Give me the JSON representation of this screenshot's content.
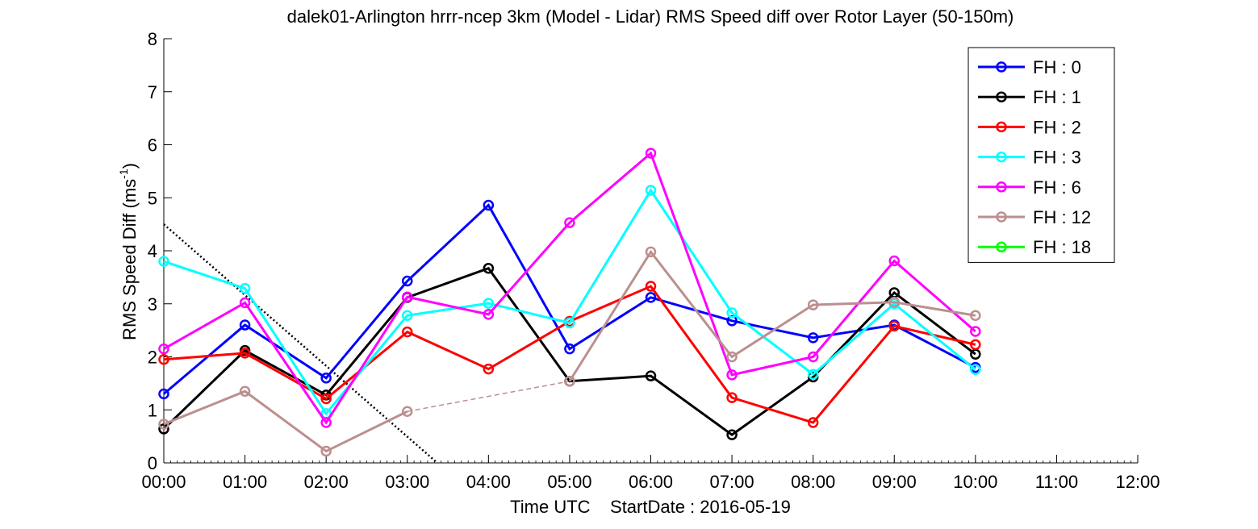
{
  "chart_data": {
    "type": "line",
    "title": "dalek01-Arlington hrrr-ncep 3km (Model - Lidar) RMS Speed diff over Rotor Layer (50-150m)",
    "xlabel": "Time UTC    StartDate : 2016-05-19",
    "ylabel": "RMS Speed Diff (ms",
    "ylabel_sup": "-1",
    "ylabel_close": ")",
    "ylim": [
      0,
      8
    ],
    "yticks": [
      "0",
      "1",
      "2",
      "3",
      "4",
      "5",
      "6",
      "7",
      "8"
    ],
    "xticks": [
      "00:00",
      "01:00",
      "02:00",
      "03:00",
      "04:00",
      "05:00",
      "06:00",
      "07:00",
      "08:00",
      "09:00",
      "10:00",
      "11:00",
      "12:00"
    ],
    "xlim": [
      0,
      12
    ],
    "grid": false,
    "legend_position": "top-right",
    "series": [
      {
        "name": "FH : 0",
        "color": "#0000ff",
        "x": [
          0,
          1,
          2,
          3,
          4,
          5,
          6,
          7,
          8,
          9,
          10
        ],
        "y": [
          1.3,
          2.6,
          1.6,
          3.43,
          4.86,
          2.15,
          3.12,
          2.68,
          2.36,
          2.6,
          1.8
        ]
      },
      {
        "name": "FH : 1",
        "color": "#000000",
        "x": [
          0,
          1,
          2,
          3,
          4,
          5,
          6,
          7,
          8,
          9,
          10
        ],
        "y": [
          0.64,
          2.12,
          1.28,
          3.12,
          3.67,
          1.54,
          1.64,
          0.53,
          1.62,
          3.21,
          2.05
        ]
      },
      {
        "name": "FH : 2",
        "color": "#ff0000",
        "x": [
          0,
          1,
          2,
          3,
          4,
          5,
          6,
          7,
          8,
          9,
          10
        ],
        "y": [
          1.95,
          2.07,
          1.21,
          2.47,
          1.77,
          2.67,
          3.33,
          1.23,
          0.76,
          2.58,
          2.23
        ]
      },
      {
        "name": "FH : 3",
        "color": "#00ffff",
        "x": [
          0,
          1,
          2,
          3,
          4,
          5,
          6,
          7,
          8,
          9,
          10
        ],
        "y": [
          3.8,
          3.29,
          0.93,
          2.78,
          3.01,
          2.64,
          5.14,
          2.83,
          1.67,
          3.0,
          1.76
        ]
      },
      {
        "name": "FH : 6",
        "color": "#ff00ff",
        "x": [
          0,
          1,
          2,
          3,
          4,
          5,
          6,
          7,
          8,
          9,
          10
        ],
        "y": [
          2.15,
          3.02,
          0.76,
          3.13,
          2.8,
          4.53,
          5.84,
          1.66,
          2.0,
          3.81,
          2.48
        ]
      },
      {
        "name": "FH : 12",
        "color": "#bc8f8f",
        "x": [
          0,
          1,
          2,
          3,
          5,
          6,
          7,
          8,
          9,
          10
        ],
        "y": [
          0.73,
          1.35,
          0.22,
          0.97,
          1.54,
          3.98,
          2.0,
          2.98,
          3.03,
          2.78
        ]
      },
      {
        "name": "FH : 18",
        "color": "#00ff00",
        "x": [],
        "y": []
      }
    ],
    "annotations": [
      {
        "type": "dotted-line",
        "color": "#000000",
        "x": [
          0,
          3.37
        ],
        "y": [
          4.5,
          0
        ]
      },
      {
        "type": "dashed-gap",
        "color": "#bc8f8f",
        "x": [
          3,
          5
        ],
        "y": [
          0.97,
          1.54
        ]
      }
    ]
  }
}
